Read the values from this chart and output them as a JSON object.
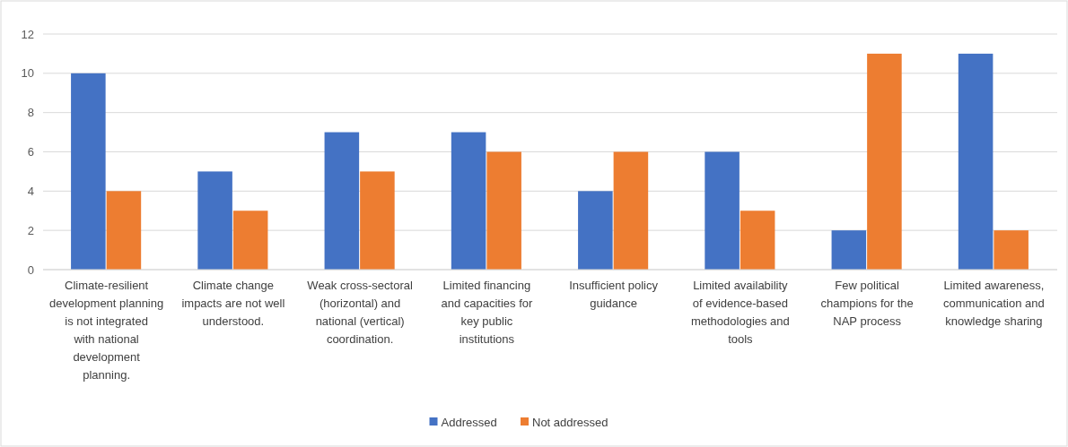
{
  "chart_data": {
    "type": "bar",
    "categories": [
      "Climate-resilient development planning is not integrated with national development planning.",
      "Climate change impacts are not well understood.",
      "Weak cross-sectoral (horizontal) and national (vertical) coordination.",
      "Limited financing and capacities for key public institutions",
      "Insufficient policy guidance",
      "Limited availability of evidence-based methodologies and tools",
      "Few political champions for the NAP process",
      "Limited awareness, communication and knowledge sharing"
    ],
    "series": [
      {
        "name": "Addressed",
        "color": "#4472c4",
        "values": [
          10,
          5,
          7,
          7,
          4,
          6,
          2,
          11
        ]
      },
      {
        "name": "Not addressed",
        "color": "#ed7d31",
        "values": [
          4,
          3,
          5,
          6,
          6,
          3,
          11,
          2
        ]
      }
    ],
    "ylim": [
      0,
      12
    ],
    "yticks": [
      0,
      2,
      4,
      6,
      8,
      10,
      12
    ],
    "grid": "y",
    "legend": "bottom"
  }
}
